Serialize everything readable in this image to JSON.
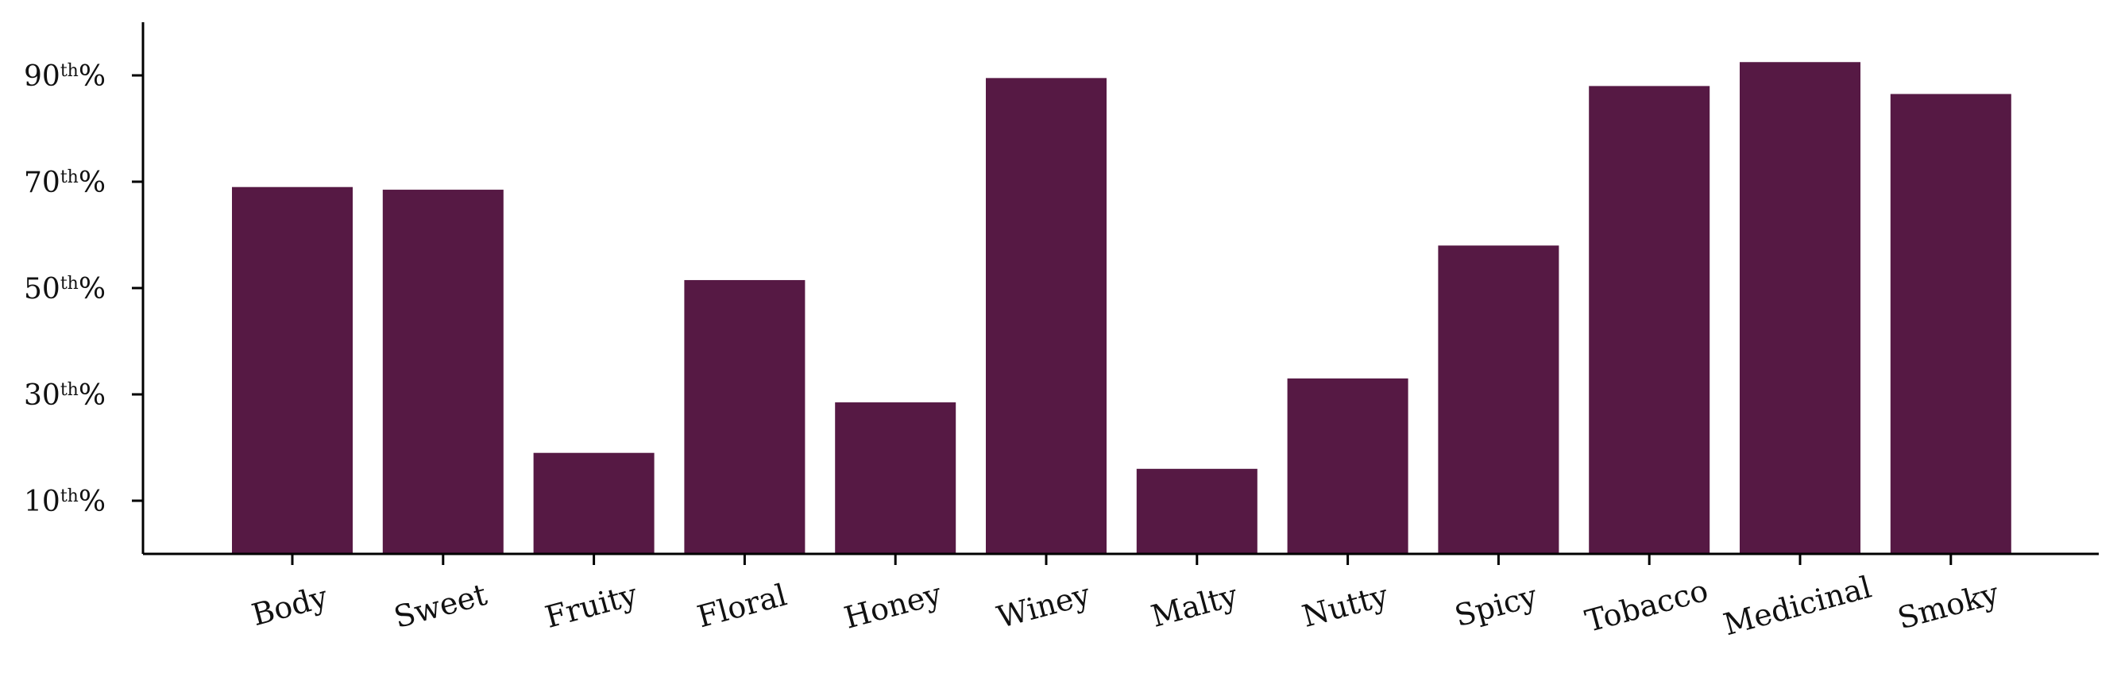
{
  "chart_data": {
    "type": "bar",
    "categories": [
      "Body",
      "Sweet",
      "Fruity",
      "Floral",
      "Honey",
      "Winey",
      "Malty",
      "Nutty",
      "Spicy",
      "Tobacco",
      "Medicinal",
      "Smoky"
    ],
    "values": [
      69,
      68.5,
      19,
      51.5,
      28.5,
      89.5,
      16,
      33,
      58,
      88,
      92.5,
      86.5
    ],
    "ylim": [
      0,
      100
    ],
    "yticks": [
      {
        "value": 10,
        "number": "10",
        "suffix": "th",
        "unit": "%"
      },
      {
        "value": 30,
        "number": "30",
        "suffix": "th",
        "unit": "%"
      },
      {
        "value": 50,
        "number": "50",
        "suffix": "th",
        "unit": "%"
      },
      {
        "value": 70,
        "number": "70",
        "suffix": "th",
        "unit": "%"
      },
      {
        "value": 90,
        "number": "90",
        "suffix": "th",
        "unit": "%"
      }
    ],
    "bar_color": "#561944",
    "grid": false,
    "title": "",
    "xlabel": "",
    "ylabel": ""
  }
}
